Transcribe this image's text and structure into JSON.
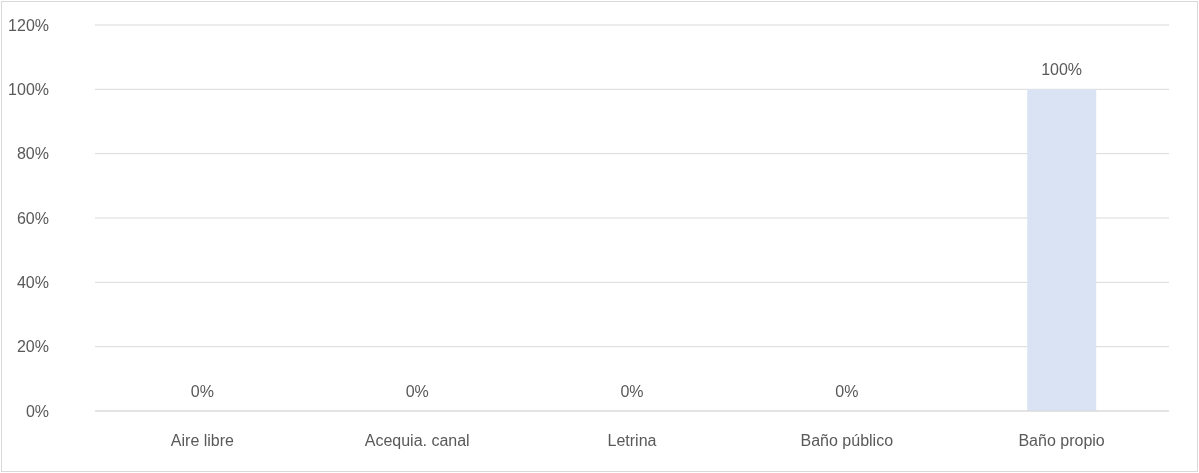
{
  "chart_data": {
    "type": "bar",
    "categories": [
      "Aire libre",
      "Acequia. canal",
      "Letrina",
      "Baño público",
      "Baño propio"
    ],
    "values": [
      0,
      0,
      0,
      0,
      100
    ],
    "color": "#dae3f3",
    "value_labels": [
      "0%",
      "0%",
      "0%",
      "0%",
      "100%"
    ],
    "ylim": [
      0,
      120
    ],
    "yticks": [
      {
        "value": 0,
        "label": "0%"
      },
      {
        "value": 20,
        "label": "20%"
      },
      {
        "value": 40,
        "label": "40%"
      },
      {
        "value": 60,
        "label": "60%"
      },
      {
        "value": 80,
        "label": "80%"
      },
      {
        "value": 100,
        "label": "100%"
      },
      {
        "value": 120,
        "label": "120%"
      }
    ],
    "grid": "y"
  }
}
